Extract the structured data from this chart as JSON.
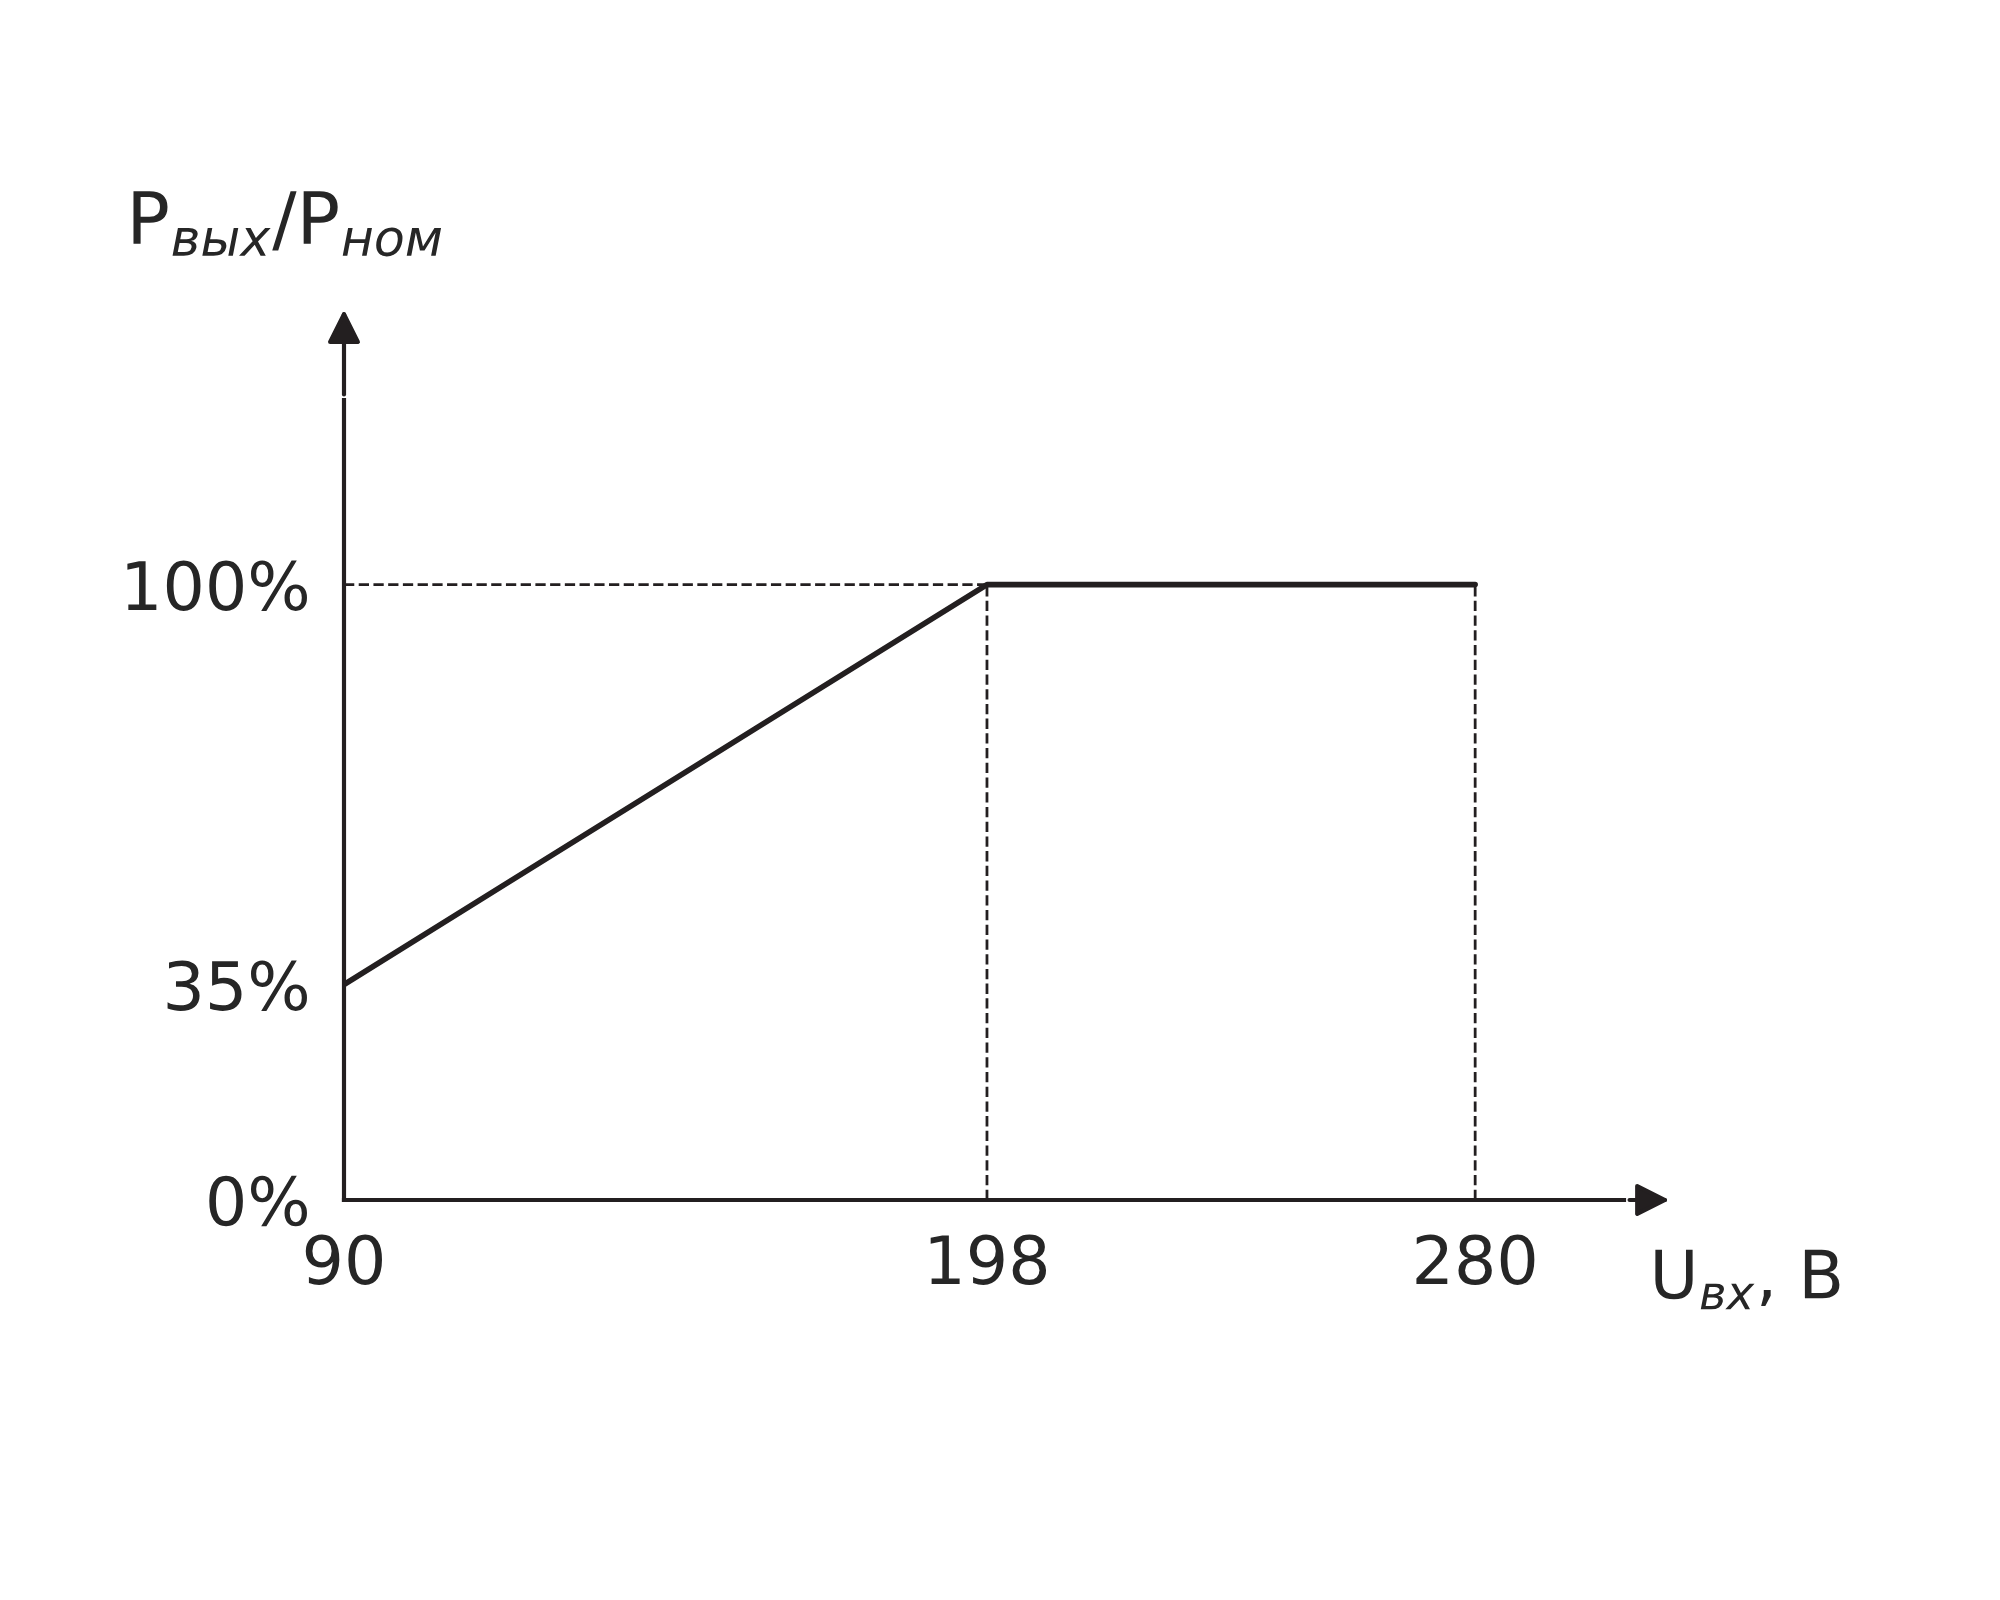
{
  "chart_data": {
    "type": "line",
    "xlabel": "U$_{вх}$, В",
    "ylabel": "P$_{вых}$/P$_{ном}$",
    "x": [
      90,
      198,
      280
    ],
    "series": [
      {
        "color": "#231f20",
        "values": [
          35,
          100,
          100
        ]
      }
    ],
    "xlim": [
      90,
      305
    ],
    "ylim": [
      0,
      130
    ],
    "xticks": [
      90,
      198,
      280
    ],
    "yticks": [
      {
        "value": 0,
        "label": "0%"
      },
      {
        "value": 35,
        "label": "35%"
      },
      {
        "value": 100,
        "label": "100%"
      }
    ],
    "ref_lines": [
      {
        "axis": "x",
        "value": 198,
        "line_style": "dashed"
      },
      {
        "axis": "x",
        "value": 280,
        "line_style": "dashed"
      },
      {
        "axis": "y",
        "value": 100,
        "line_style": "dashed"
      }
    ],
    "grid": false,
    "marker": "none",
    "line_style": "solid"
  }
}
